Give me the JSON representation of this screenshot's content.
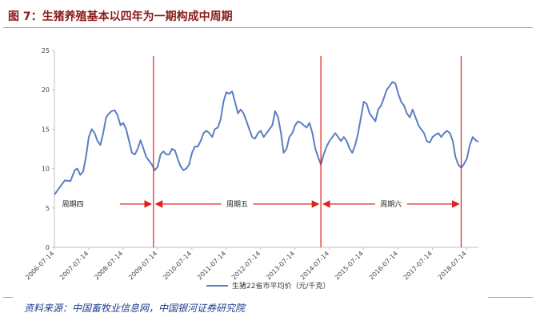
{
  "figure": {
    "title": "图 7：生猪养殖基本以四年为一期构成中周期",
    "source": "资料来源：中国畜牧业信息网，中国银河证券研究院"
  },
  "chart_data": {
    "type": "line",
    "title": "",
    "xlabel": "",
    "ylabel": "",
    "ylim": [
      0,
      25
    ],
    "yticks": [
      0,
      5,
      10,
      15,
      20,
      25
    ],
    "xlim": [
      "2006-07-14",
      "2018-11-14"
    ],
    "xtick_labels": [
      "2006-07-14",
      "2007-07-14",
      "2008-07-14",
      "2009-07-14",
      "2010-07-14",
      "2011-07-14",
      "2012-07-14",
      "2013-07-14",
      "2014-07-14",
      "2015-07-14",
      "2016-07-14",
      "2017-07-14",
      "2018-07-14"
    ],
    "grid": false,
    "legend_position": "bottom",
    "series": [
      {
        "name": "生猪22省市平均价（元/千克）",
        "color": "#5b7fc0",
        "points": [
          [
            "2006-07-14",
            6.7
          ],
          [
            "2006-09-01",
            7.5
          ],
          [
            "2006-11-01",
            8.5
          ],
          [
            "2007-01-01",
            8.4
          ],
          [
            "2007-02-15",
            9.8
          ],
          [
            "2007-03-15",
            10.0
          ],
          [
            "2007-04-15",
            9.2
          ],
          [
            "2007-05-15",
            9.6
          ],
          [
            "2007-06-15",
            11.5
          ],
          [
            "2007-07-15",
            14.0
          ],
          [
            "2007-08-15",
            15.0
          ],
          [
            "2007-09-15",
            14.5
          ],
          [
            "2007-10-15",
            13.5
          ],
          [
            "2007-11-15",
            13.0
          ],
          [
            "2007-12-15",
            14.5
          ],
          [
            "2008-01-15",
            16.5
          ],
          [
            "2008-02-15",
            17.0
          ],
          [
            "2008-03-15",
            17.3
          ],
          [
            "2008-04-15",
            17.4
          ],
          [
            "2008-05-15",
            16.8
          ],
          [
            "2008-06-15",
            15.5
          ],
          [
            "2008-07-15",
            15.8
          ],
          [
            "2008-08-15",
            15.0
          ],
          [
            "2008-09-15",
            13.5
          ],
          [
            "2008-10-15",
            12.0
          ],
          [
            "2008-11-15",
            11.8
          ],
          [
            "2008-12-15",
            12.5
          ],
          [
            "2009-01-15",
            13.6
          ],
          [
            "2009-02-15",
            12.5
          ],
          [
            "2009-03-15",
            11.5
          ],
          [
            "2009-04-15",
            11.0
          ],
          [
            "2009-05-15",
            10.5
          ],
          [
            "2009-06-15",
            9.8
          ],
          [
            "2009-07-15",
            10.2
          ],
          [
            "2009-08-15",
            11.8
          ],
          [
            "2009-09-15",
            12.2
          ],
          [
            "2009-10-15",
            11.8
          ],
          [
            "2009-11-15",
            11.8
          ],
          [
            "2009-12-15",
            12.5
          ],
          [
            "2010-01-15",
            12.3
          ],
          [
            "2010-02-15",
            11.2
          ],
          [
            "2010-03-15",
            10.3
          ],
          [
            "2010-04-15",
            9.8
          ],
          [
            "2010-05-15",
            10.0
          ],
          [
            "2010-06-15",
            10.5
          ],
          [
            "2010-07-15",
            12.0
          ],
          [
            "2010-08-15",
            12.8
          ],
          [
            "2010-09-15",
            12.8
          ],
          [
            "2010-10-15",
            13.5
          ],
          [
            "2010-11-15",
            14.5
          ],
          [
            "2010-12-15",
            14.8
          ],
          [
            "2011-01-15",
            14.5
          ],
          [
            "2011-02-15",
            14.0
          ],
          [
            "2011-03-15",
            15.0
          ],
          [
            "2011-04-15",
            15.2
          ],
          [
            "2011-05-15",
            16.2
          ],
          [
            "2011-06-15",
            18.5
          ],
          [
            "2011-07-15",
            19.7
          ],
          [
            "2011-08-15",
            19.5
          ],
          [
            "2011-09-15",
            19.8
          ],
          [
            "2011-10-15",
            18.5
          ],
          [
            "2011-11-15",
            17.0
          ],
          [
            "2011-12-15",
            17.5
          ],
          [
            "2012-01-15",
            17.0
          ],
          [
            "2012-02-15",
            16.0
          ],
          [
            "2012-03-15",
            15.0
          ],
          [
            "2012-04-15",
            14.0
          ],
          [
            "2012-05-15",
            13.8
          ],
          [
            "2012-06-15",
            14.5
          ],
          [
            "2012-07-15",
            14.8
          ],
          [
            "2012-08-15",
            14.0
          ],
          [
            "2012-09-15",
            14.5
          ],
          [
            "2012-10-15",
            15.0
          ],
          [
            "2012-11-15",
            15.5
          ],
          [
            "2012-12-15",
            17.3
          ],
          [
            "2013-01-15",
            16.5
          ],
          [
            "2013-02-15",
            14.5
          ],
          [
            "2013-03-15",
            12.0
          ],
          [
            "2013-04-15",
            12.5
          ],
          [
            "2013-05-15",
            14.0
          ],
          [
            "2013-06-15",
            14.5
          ],
          [
            "2013-07-15",
            15.5
          ],
          [
            "2013-08-15",
            16.0
          ],
          [
            "2013-09-15",
            15.8
          ],
          [
            "2013-10-15",
            15.5
          ],
          [
            "2013-11-15",
            15.2
          ],
          [
            "2013-12-15",
            15.8
          ],
          [
            "2014-01-15",
            14.5
          ],
          [
            "2014-02-15",
            12.5
          ],
          [
            "2014-03-15",
            11.5
          ],
          [
            "2014-04-15",
            10.5
          ],
          [
            "2014-05-15",
            11.8
          ],
          [
            "2014-06-15",
            12.8
          ],
          [
            "2014-07-15",
            13.5
          ],
          [
            "2014-08-15",
            14.0
          ],
          [
            "2014-09-15",
            14.5
          ],
          [
            "2014-10-15",
            14.0
          ],
          [
            "2014-11-15",
            13.5
          ],
          [
            "2014-12-15",
            14.0
          ],
          [
            "2015-01-15",
            13.5
          ],
          [
            "2015-02-15",
            12.5
          ],
          [
            "2015-03-15",
            12.0
          ],
          [
            "2015-04-15",
            13.0
          ],
          [
            "2015-05-15",
            14.5
          ],
          [
            "2015-06-15",
            16.5
          ],
          [
            "2015-07-15",
            18.5
          ],
          [
            "2015-08-15",
            18.2
          ],
          [
            "2015-09-15",
            17.0
          ],
          [
            "2015-10-15",
            16.5
          ],
          [
            "2015-11-15",
            16.0
          ],
          [
            "2015-12-15",
            17.5
          ],
          [
            "2016-01-15",
            18.0
          ],
          [
            "2016-02-15",
            19.0
          ],
          [
            "2016-03-15",
            20.0
          ],
          [
            "2016-04-15",
            20.5
          ],
          [
            "2016-05-15",
            21.0
          ],
          [
            "2016-06-15",
            20.8
          ],
          [
            "2016-07-15",
            19.5
          ],
          [
            "2016-08-15",
            18.5
          ],
          [
            "2016-09-15",
            18.0
          ],
          [
            "2016-10-15",
            17.0
          ],
          [
            "2016-11-15",
            16.5
          ],
          [
            "2016-12-15",
            17.5
          ],
          [
            "2017-01-15",
            16.5
          ],
          [
            "2017-02-15",
            15.5
          ],
          [
            "2017-03-15",
            15.0
          ],
          [
            "2017-04-15",
            14.5
          ],
          [
            "2017-05-15",
            13.5
          ],
          [
            "2017-06-15",
            13.3
          ],
          [
            "2017-07-15",
            14.0
          ],
          [
            "2017-08-15",
            14.3
          ],
          [
            "2017-09-15",
            14.5
          ],
          [
            "2017-10-15",
            14.0
          ],
          [
            "2017-11-15",
            14.5
          ],
          [
            "2017-12-15",
            14.8
          ],
          [
            "2018-01-15",
            14.5
          ],
          [
            "2018-02-15",
            13.5
          ],
          [
            "2018-03-15",
            11.5
          ],
          [
            "2018-04-15",
            10.5
          ],
          [
            "2018-05-15",
            10.1
          ],
          [
            "2018-06-15",
            10.6
          ],
          [
            "2018-07-15",
            11.3
          ],
          [
            "2018-08-15",
            13.0
          ],
          [
            "2018-09-15",
            14.0
          ],
          [
            "2018-10-15",
            13.6
          ],
          [
            "2018-11-15",
            13.4
          ]
        ]
      }
    ],
    "annotations": {
      "cycle_boundaries": [
        "2009-06-01",
        "2014-04-15",
        "2018-05-15"
      ],
      "cycle_boundary_color": "#e02020",
      "arrow_level": 5.5,
      "cycles": [
        {
          "label": "周期四",
          "start": "2006-07-14",
          "end": "2009-06-01"
        },
        {
          "label": "周期五",
          "start": "2009-06-01",
          "end": "2014-04-15"
        },
        {
          "label": "周期六",
          "start": "2014-04-15",
          "end": "2018-05-15"
        }
      ]
    }
  }
}
